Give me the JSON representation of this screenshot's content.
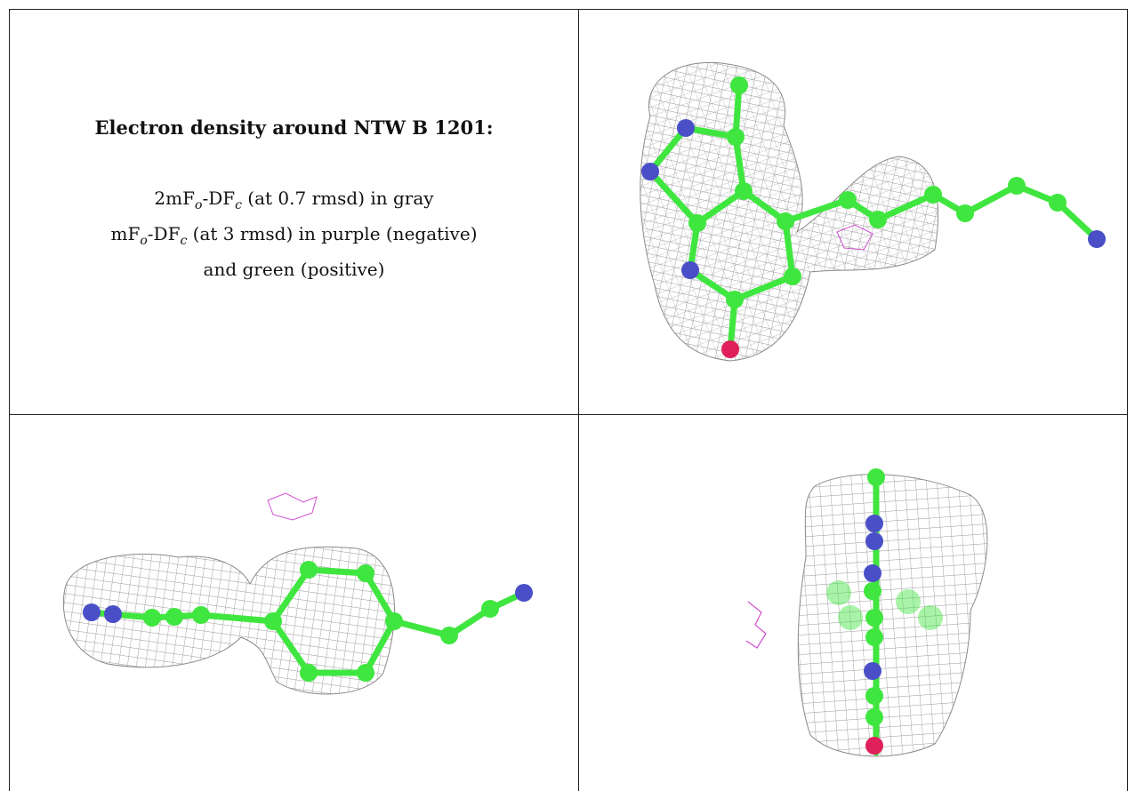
{
  "caption": {
    "title": "Electron density around NTW B 1201:",
    "line1_prefix": "2mF",
    "line1_sub_o": "o",
    "line1_mid": "-DF",
    "line1_sub_c": "c",
    "line1_suffix": " (at 0.7 rmsd) in gray",
    "line2_prefix": "mF",
    "line2_sub_o": "o",
    "line2_mid": "-DF",
    "line2_sub_c": "c",
    "line2_suffix": " (at 3 rmsd) in purple (negative)",
    "line3": "and green (positive)"
  },
  "panels": [
    {
      "view": "top-right",
      "content": "ligand density view 1"
    },
    {
      "view": "bottom-left",
      "content": "ligand density view 2"
    },
    {
      "view": "bottom-right",
      "content": "ligand density view 3"
    }
  ],
  "colors": {
    "carbon": "#3fe63f",
    "nitrogen": "#4a4fc8",
    "oxygen": "#e0205a",
    "mesh_2fofc": "#9a9a9a",
    "mesh_negative": "#d050d0",
    "border": "#222222"
  }
}
